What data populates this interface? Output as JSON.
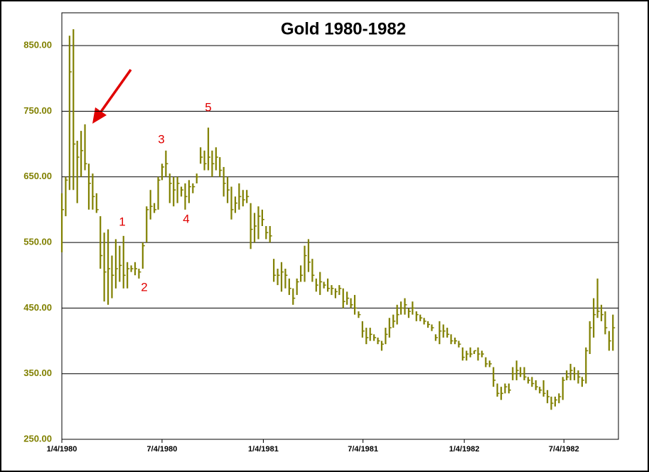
{
  "chart_data": {
    "type": "hlc",
    "title": "Gold 1980-1982",
    "color": "#808000",
    "x": [
      "1980-01-04",
      "1980-01-11",
      "1980-01-18",
      "1980-01-25",
      "1980-02-01",
      "1980-02-08",
      "1980-02-15",
      "1980-02-22",
      "1980-02-29",
      "1980-03-07",
      "1980-03-14",
      "1980-03-21",
      "1980-03-28",
      "1980-04-04",
      "1980-04-11",
      "1980-04-18",
      "1980-04-25",
      "1980-05-02",
      "1980-05-09",
      "1980-05-16",
      "1980-05-23",
      "1980-05-30",
      "1980-06-06",
      "1980-06-13",
      "1980-06-20",
      "1980-06-27",
      "1980-07-04",
      "1980-07-11",
      "1980-07-18",
      "1980-07-25",
      "1980-08-01",
      "1980-08-08",
      "1980-08-15",
      "1980-08-22",
      "1980-08-29",
      "1980-09-05",
      "1980-09-12",
      "1980-09-19",
      "1980-09-26",
      "1980-10-03",
      "1980-10-10",
      "1980-10-17",
      "1980-10-24",
      "1980-10-31",
      "1980-11-07",
      "1980-11-14",
      "1980-11-21",
      "1980-11-28",
      "1980-12-05",
      "1980-12-12",
      "1980-12-19",
      "1980-12-26",
      "1981-01-02",
      "1981-01-09",
      "1981-01-16",
      "1981-01-23",
      "1981-01-30",
      "1981-02-06",
      "1981-02-13",
      "1981-02-20",
      "1981-02-27",
      "1981-03-06",
      "1981-03-13",
      "1981-03-20",
      "1981-03-27",
      "1981-04-03",
      "1981-04-10",
      "1981-04-17",
      "1981-04-24",
      "1981-05-01",
      "1981-05-08",
      "1981-05-15",
      "1981-05-22",
      "1981-05-29",
      "1981-06-05",
      "1981-06-12",
      "1981-06-19",
      "1981-06-26",
      "1981-07-03",
      "1981-07-10",
      "1981-07-17",
      "1981-07-24",
      "1981-07-31",
      "1981-08-07",
      "1981-08-14",
      "1981-08-21",
      "1981-08-28",
      "1981-09-04",
      "1981-09-11",
      "1981-09-18",
      "1981-09-25",
      "1981-10-02",
      "1981-10-09",
      "1981-10-16",
      "1981-10-23",
      "1981-10-30",
      "1981-11-06",
      "1981-11-13",
      "1981-11-20",
      "1981-11-27",
      "1981-12-04",
      "1981-12-11",
      "1981-12-18",
      "1981-12-25",
      "1982-01-01",
      "1982-01-08",
      "1982-01-15",
      "1982-01-22",
      "1982-01-29",
      "1982-02-05",
      "1982-02-12",
      "1982-02-19",
      "1982-02-26",
      "1982-03-05",
      "1982-03-12",
      "1982-03-19",
      "1982-03-26",
      "1982-04-02",
      "1982-04-09",
      "1982-04-16",
      "1982-04-23",
      "1982-04-30",
      "1982-05-07",
      "1982-05-14",
      "1982-05-21",
      "1982-05-28",
      "1982-06-04",
      "1982-06-11",
      "1982-06-18",
      "1982-06-25",
      "1982-07-02",
      "1982-07-09",
      "1982-07-16",
      "1982-07-23",
      "1982-07-30",
      "1982-08-06",
      "1982-08-13",
      "1982-08-20",
      "1982-08-27",
      "1982-09-03",
      "1982-09-10",
      "1982-09-17",
      "1982-09-24",
      "1982-10-01"
    ],
    "high": [
      625,
      650,
      865,
      875,
      705,
      720,
      730,
      670,
      655,
      625,
      590,
      565,
      570,
      530,
      555,
      545,
      560,
      520,
      515,
      520,
      510,
      550,
      605,
      630,
      610,
      650,
      670,
      690,
      655,
      650,
      650,
      635,
      640,
      645,
      640,
      655,
      695,
      690,
      725,
      690,
      695,
      680,
      665,
      650,
      635,
      620,
      640,
      630,
      630,
      610,
      595,
      605,
      600,
      575,
      575,
      525,
      510,
      520,
      510,
      495,
      480,
      495,
      515,
      545,
      555,
      525,
      495,
      505,
      490,
      495,
      485,
      480,
      485,
      480,
      475,
      465,
      470,
      445,
      430,
      420,
      420,
      410,
      405,
      400,
      420,
      435,
      440,
      455,
      460,
      465,
      450,
      460,
      445,
      440,
      435,
      430,
      425,
      410,
      430,
      425,
      420,
      410,
      405,
      400,
      390,
      385,
      390,
      385,
      390,
      385,
      375,
      370,
      360,
      335,
      330,
      335,
      335,
      360,
      370,
      360,
      360,
      345,
      345,
      340,
      330,
      340,
      325,
      315,
      315,
      320,
      345,
      355,
      365,
      360,
      355,
      345,
      390,
      430,
      465,
      495,
      455,
      445,
      415,
      440
    ],
    "low": [
      535,
      590,
      630,
      630,
      610,
      650,
      660,
      600,
      600,
      595,
      510,
      460,
      455,
      465,
      480,
      490,
      480,
      480,
      505,
      500,
      495,
      510,
      550,
      585,
      595,
      600,
      645,
      650,
      610,
      605,
      610,
      620,
      600,
      610,
      625,
      640,
      670,
      660,
      660,
      650,
      660,
      650,
      620,
      610,
      585,
      595,
      600,
      605,
      610,
      540,
      550,
      555,
      575,
      555,
      550,
      490,
      485,
      475,
      480,
      470,
      455,
      470,
      490,
      490,
      505,
      490,
      475,
      470,
      480,
      475,
      470,
      465,
      470,
      450,
      455,
      450,
      440,
      435,
      405,
      395,
      400,
      400,
      395,
      385,
      395,
      405,
      420,
      425,
      440,
      440,
      435,
      440,
      430,
      430,
      425,
      420,
      415,
      400,
      395,
      405,
      405,
      395,
      395,
      390,
      370,
      370,
      375,
      380,
      370,
      375,
      360,
      360,
      330,
      315,
      310,
      320,
      320,
      340,
      340,
      345,
      340,
      335,
      330,
      325,
      320,
      315,
      305,
      295,
      300,
      305,
      310,
      340,
      340,
      340,
      335,
      330,
      335,
      380,
      405,
      435,
      430,
      410,
      385,
      385
    ],
    "close": [
      600,
      645,
      810,
      700,
      680,
      690,
      670,
      640,
      620,
      600,
      530,
      505,
      510,
      500,
      510,
      515,
      500,
      510,
      510,
      510,
      505,
      545,
      600,
      605,
      600,
      645,
      665,
      670,
      640,
      630,
      640,
      630,
      620,
      635,
      635,
      650,
      680,
      670,
      680,
      670,
      680,
      660,
      640,
      630,
      600,
      610,
      620,
      615,
      620,
      570,
      575,
      590,
      585,
      565,
      560,
      500,
      500,
      505,
      500,
      480,
      465,
      490,
      500,
      530,
      520,
      500,
      485,
      490,
      485,
      480,
      480,
      475,
      480,
      460,
      465,
      455,
      450,
      440,
      415,
      405,
      410,
      405,
      400,
      395,
      410,
      420,
      430,
      440,
      450,
      455,
      445,
      450,
      440,
      435,
      430,
      425,
      420,
      405,
      415,
      415,
      410,
      400,
      400,
      395,
      375,
      380,
      380,
      385,
      380,
      380,
      365,
      365,
      340,
      320,
      320,
      330,
      325,
      350,
      355,
      350,
      345,
      340,
      335,
      330,
      325,
      320,
      315,
      305,
      310,
      315,
      340,
      345,
      355,
      350,
      345,
      340,
      385,
      420,
      440,
      445,
      440,
      420,
      400,
      420
    ],
    "xlim": [
      "1980-01-04",
      "1982-10-11"
    ],
    "xticks": [
      {
        "value": "1980-01-04",
        "label": "1/4/1980"
      },
      {
        "value": "1980-07-04",
        "label": "7/4/1980"
      },
      {
        "value": "1981-01-04",
        "label": "1/4/1981"
      },
      {
        "value": "1981-07-04",
        "label": "7/4/1981"
      },
      {
        "value": "1982-01-04",
        "label": "1/4/1982"
      },
      {
        "value": "1982-07-04",
        "label": "7/4/1982"
      }
    ],
    "ylim": [
      250,
      900
    ],
    "yticks": [
      {
        "value": 250,
        "label": "250.00"
      },
      {
        "value": 350,
        "label": "350.00"
      },
      {
        "value": 450,
        "label": "450.00"
      },
      {
        "value": 550,
        "label": "550.00"
      },
      {
        "value": 650,
        "label": "650.00"
      },
      {
        "value": 750,
        "label": "750.00"
      },
      {
        "value": 850,
        "label": "850.00"
      }
    ],
    "grid": true,
    "annotations": [
      "1",
      "2",
      "3",
      "4",
      "5"
    ]
  }
}
